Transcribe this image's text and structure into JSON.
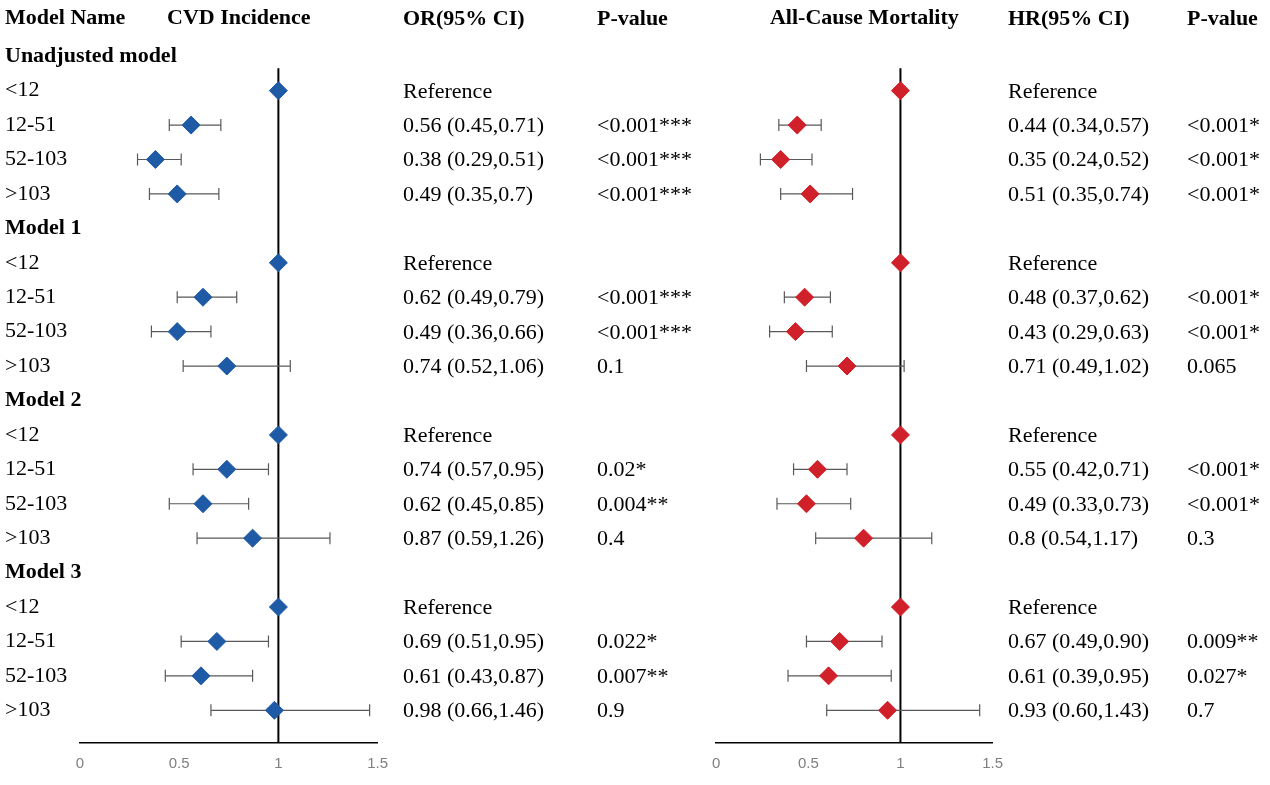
{
  "chart_data": [
    {
      "type": "scatter",
      "orientation": "horizontal",
      "title": "CVD Incidence",
      "ylabel": "Model Name",
      "color": "#1f5aa6",
      "marker": "diamond",
      "categories": [
        "Unadjusted model",
        "<12",
        "12-51",
        "52-103",
        ">103",
        "Model 1",
        "<12",
        "12-51",
        "52-103",
        ">103",
        "Model 2",
        "<12",
        "12-51",
        "52-103",
        ">103",
        "Model 3",
        "<12",
        "12-51",
        "52-103",
        ">103"
      ],
      "values": [
        null,
        1,
        0.56,
        0.38,
        0.49,
        null,
        1,
        0.62,
        0.49,
        0.74,
        null,
        1,
        0.74,
        0.62,
        0.87,
        null,
        1,
        0.69,
        0.61,
        0.98
      ],
      "errors": [
        null,
        null,
        [
          0.45,
          0.71
        ],
        [
          0.29,
          0.51
        ],
        [
          0.35,
          0.7
        ],
        null,
        null,
        [
          0.49,
          0.79
        ],
        [
          0.36,
          0.66
        ],
        [
          0.52,
          1.06
        ],
        null,
        null,
        [
          0.57,
          0.95
        ],
        [
          0.45,
          0.85
        ],
        [
          0.59,
          1.26
        ],
        null,
        null,
        [
          0.51,
          0.95
        ],
        [
          0.43,
          0.87
        ],
        [
          0.66,
          1.46
        ]
      ],
      "ref_lines": [
        {
          "axis": "x",
          "value": 1,
          "color": "#000000"
        }
      ],
      "xlim": [
        0,
        1.5
      ],
      "xticks": [
        0,
        0.5,
        1,
        1.5
      ]
    },
    {
      "type": "other",
      "title": "OR(95% CI)",
      "categories": [
        null,
        "Reference",
        "0.56 (0.45,0.71)",
        "0.38 (0.29,0.51)",
        "0.49 (0.35,0.7)",
        null,
        "Reference",
        "0.62 (0.49,0.79)",
        "0.49 (0.36,0.66)",
        "0.74 (0.52,1.06)",
        null,
        "Reference",
        "0.74 (0.57,0.95)",
        "0.62 (0.45,0.85)",
        "0.87 (0.59,1.26)",
        null,
        "Reference",
        "0.69 (0.51,0.95)",
        "0.61 (0.43,0.87)",
        "0.98 (0.66,1.46)"
      ]
    },
    {
      "type": "other",
      "title": "P-value",
      "categories": [
        null,
        null,
        "<0.001***",
        "<0.001***",
        "<0.001***",
        null,
        null,
        "<0.001***",
        "<0.001***",
        "0.1",
        null,
        null,
        "0.02*",
        "0.004**",
        "0.4",
        null,
        null,
        "0.022*",
        "0.007**",
        "0.9"
      ]
    },
    {
      "type": "scatter",
      "orientation": "horizontal",
      "title": "All-Cause Mortality",
      "color": "#d0202a",
      "marker": "diamond",
      "categories": [
        null,
        null,
        null,
        null,
        null,
        null,
        null,
        null,
        null,
        null,
        null,
        null,
        null,
        null,
        null,
        null,
        null,
        null,
        null,
        null
      ],
      "values": [
        null,
        1,
        0.44,
        0.35,
        0.51,
        null,
        1,
        0.48,
        0.43,
        0.71,
        null,
        1,
        0.55,
        0.49,
        0.8,
        null,
        1,
        0.67,
        0.61,
        0.93
      ],
      "errors": [
        null,
        null,
        [
          0.34,
          0.57
        ],
        [
          0.24,
          0.52
        ],
        [
          0.35,
          0.74
        ],
        null,
        null,
        [
          0.37,
          0.62
        ],
        [
          0.29,
          0.63
        ],
        [
          0.49,
          1.02
        ],
        null,
        null,
        [
          0.42,
          0.71
        ],
        [
          0.33,
          0.73
        ],
        [
          0.54,
          1.17
        ],
        null,
        null,
        [
          0.49,
          0.9
        ],
        [
          0.39,
          0.95
        ],
        [
          0.6,
          1.43
        ]
      ],
      "ref_lines": [
        {
          "axis": "x",
          "value": 1,
          "color": "#000000"
        }
      ],
      "xlim": [
        0,
        1.5
      ],
      "xticks": [
        0,
        0.5,
        1,
        1.5
      ]
    },
    {
      "type": "other",
      "title": "HR(95% CI)",
      "categories": [
        null,
        "Reference",
        "0.44 (0.34,0.57)",
        "0.35 (0.24,0.52)",
        "0.51 (0.35,0.74)",
        null,
        "Reference",
        "0.48 (0.37,0.62)",
        "0.43 (0.29,0.63)",
        "0.71 (0.49,1.02)",
        null,
        "Reference",
        "0.55 (0.42,0.71)",
        "0.49 (0.33,0.73)",
        "0.8 (0.54,1.17)",
        null,
        "Reference",
        "0.67 (0.49,0.90)",
        "0.61 (0.39,0.95)",
        "0.93 (0.60,1.43)"
      ]
    },
    {
      "type": "other",
      "title": "P-value",
      "categories": [
        null,
        null,
        "<0.001*",
        "<0.001*",
        "<0.001*",
        null,
        null,
        "<0.001*",
        "<0.001*",
        "0.065",
        null,
        null,
        "<0.001*",
        "<0.001*",
        "0.3",
        null,
        null,
        "0.009**",
        "0.027*",
        "0.7"
      ]
    }
  ]
}
